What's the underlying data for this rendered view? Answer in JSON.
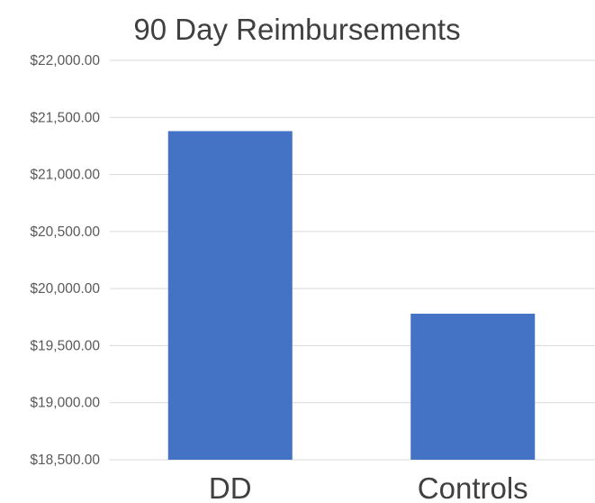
{
  "chart_data": {
    "type": "bar",
    "title": "90 Day Reimbursements",
    "xlabel": "",
    "ylabel": "",
    "categories": [
      "DD",
      "Controls"
    ],
    "values": [
      21380,
      19780
    ],
    "ylim": [
      18500,
      22000
    ],
    "yticks": [
      18500,
      19000,
      19500,
      20000,
      20500,
      21000,
      21500,
      22000
    ],
    "ytick_labels": [
      "$18,500.00",
      "$19,000.00",
      "$19,500.00",
      "$20,000.00",
      "$20,500.00",
      "$21,000.00",
      "$21,500.00",
      "$22,000.00"
    ],
    "grid": true,
    "legend": "none",
    "bar_color": "#4472c4"
  }
}
